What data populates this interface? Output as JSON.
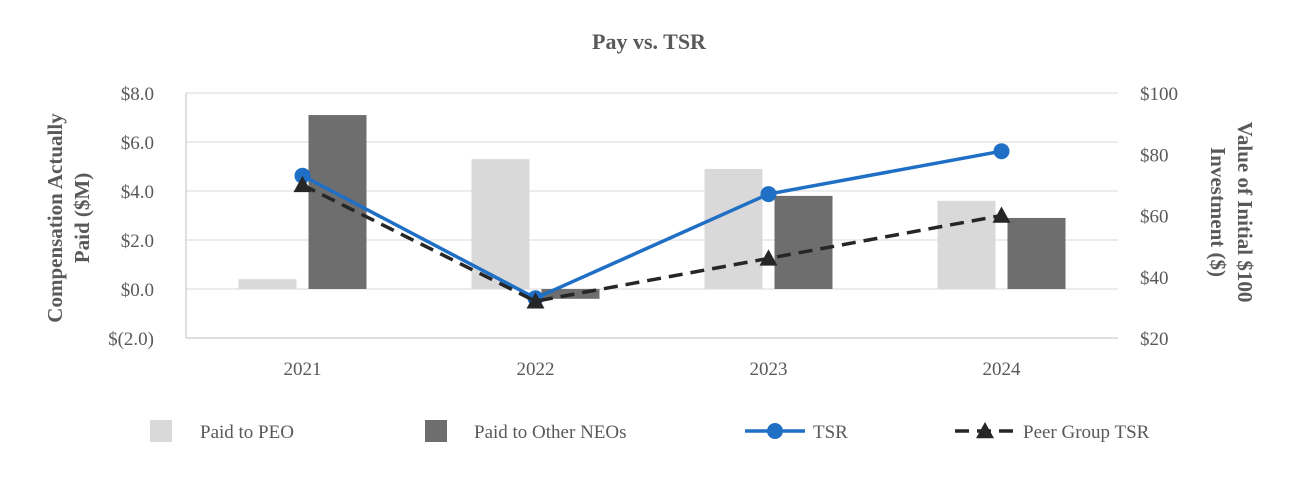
{
  "chart_data": {
    "type": "bar",
    "title": "Pay vs. TSR",
    "categories": [
      "2021",
      "2022",
      "2023",
      "2024"
    ],
    "y_left": {
      "label_lines": [
        "Compensation Actually",
        "Paid ($M)"
      ],
      "ticks": [
        "$(2.0)",
        "$0.0",
        "$2.0",
        "$4.0",
        "$6.0",
        "$8.0"
      ],
      "tick_values": [
        -2,
        0,
        2,
        4,
        6,
        8
      ],
      "ylim": [
        -2,
        8
      ]
    },
    "y_right": {
      "label_lines": [
        "Value of Initial $100",
        "Investment ($)"
      ],
      "ticks": [
        "$20",
        "$40",
        "$60",
        "$80",
        "$100"
      ],
      "tick_values": [
        20,
        40,
        60,
        80,
        100
      ],
      "ylim": [
        20,
        100
      ]
    },
    "grid": true,
    "legend_position": "bottom",
    "series": [
      {
        "name": "Paid to PEO",
        "kind": "bar",
        "axis": "left",
        "color": "#d9d9d9",
        "values": [
          0.4,
          5.3,
          4.9,
          3.6
        ]
      },
      {
        "name": "Paid to Other NEOs",
        "kind": "bar",
        "axis": "left",
        "color": "#6e6e6e",
        "values": [
          7.1,
          -0.4,
          3.8,
          2.9
        ]
      },
      {
        "name": "TSR",
        "kind": "line",
        "axis": "right",
        "color": "#1f6fc5",
        "marker": "circle",
        "dash": "solid",
        "values": [
          73,
          33,
          67,
          81
        ]
      },
      {
        "name": "Peer Group TSR",
        "kind": "line",
        "axis": "right",
        "color": "#262626",
        "marker": "triangle",
        "dash": "dashed",
        "values": [
          70,
          32,
          46,
          60
        ]
      }
    ]
  }
}
